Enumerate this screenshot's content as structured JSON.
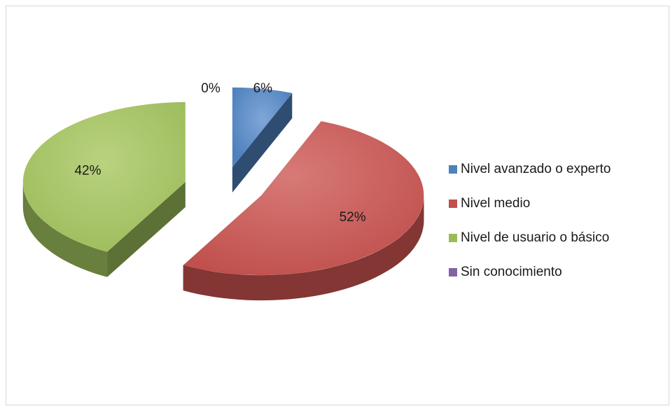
{
  "chart_data": {
    "type": "pie",
    "title": "",
    "categories": [
      "Nivel avanzado o experto",
      "Nivel medio",
      "Nivel de usuario o básico",
      "Sin conocimiento"
    ],
    "values": [
      6,
      52,
      42,
      0
    ],
    "data_labels": [
      "6%",
      "52%",
      "42%",
      "0%"
    ],
    "colors": [
      "#4F81BD",
      "#C0504D",
      "#9BBB59",
      "#8064A2"
    ],
    "three_d": true,
    "exploded": true,
    "legend_position": "right"
  }
}
